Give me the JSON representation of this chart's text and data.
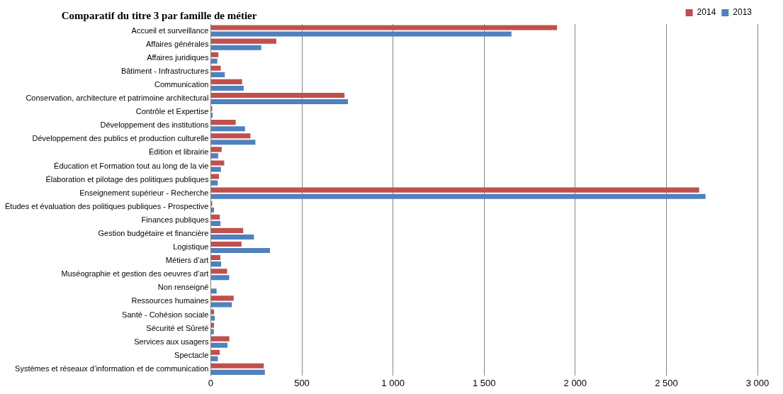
{
  "chart_data": {
    "type": "bar",
    "orientation": "horizontal",
    "title": "Comparatif du titre 3 par famille de métier",
    "categories": [
      "Accueil et surveillance",
      "Affaires générales",
      "Affaires juridiques",
      "Bâtiment - Infrastructures",
      "Communication",
      "Conservation, architecture et patrimoine architectural",
      "Contrôle et Expertise",
      "Développement des institutions",
      "Développement des publics et production culturelle",
      "Édition et librairie",
      "Éducation et Formation tout au long de la vie",
      "Élaboration et pilotage des politiques publiques",
      "Enseignement supérieur - Recherche",
      "Études et évaluation des politiques publiques - Prospective",
      "Finances publiques",
      "Gestion budgétaire et financière",
      "Logistique",
      "Métiers d’art",
      "Muséographie et gestion des oeuvres d’art",
      "Non renseigné",
      "Ressources humaines",
      "Santé - Cohésion sociale",
      "Sécurité et Sûreté",
      "Services aux usagers",
      "Spectacle",
      "Systèmes et réseaux d’information et de communication"
    ],
    "series": [
      {
        "name": "2014",
        "color": "#c0504d",
        "values": [
          1900,
          360,
          42,
          55,
          172,
          734,
          8,
          137,
          218,
          60,
          74,
          45,
          2680,
          8,
          50,
          178,
          169,
          53,
          90,
          null,
          126,
          18,
          18,
          102,
          49,
          291
        ]
      },
      {
        "name": "2013",
        "color": "#4f81bd",
        "values": [
          1650,
          277,
          36,
          77,
          181,
          753,
          10,
          188,
          245,
          41,
          56,
          38,
          2715,
          18,
          53,
          237,
          325,
          57,
          101,
          32,
          116,
          22,
          17,
          92,
          39,
          297
        ]
      }
    ],
    "xlim": [
      0,
      3000
    ],
    "xticks": [
      0,
      500,
      {
        "value": 1000,
        "label": "1 000"
      },
      {
        "value": 1500,
        "label": "1 500"
      },
      {
        "value": 2000,
        "label": "2 000"
      },
      {
        "value": 2500,
        "label": "2 500"
      },
      {
        "value": 3000,
        "label": "3 000"
      }
    ],
    "grid": "x",
    "legend": "top right"
  }
}
